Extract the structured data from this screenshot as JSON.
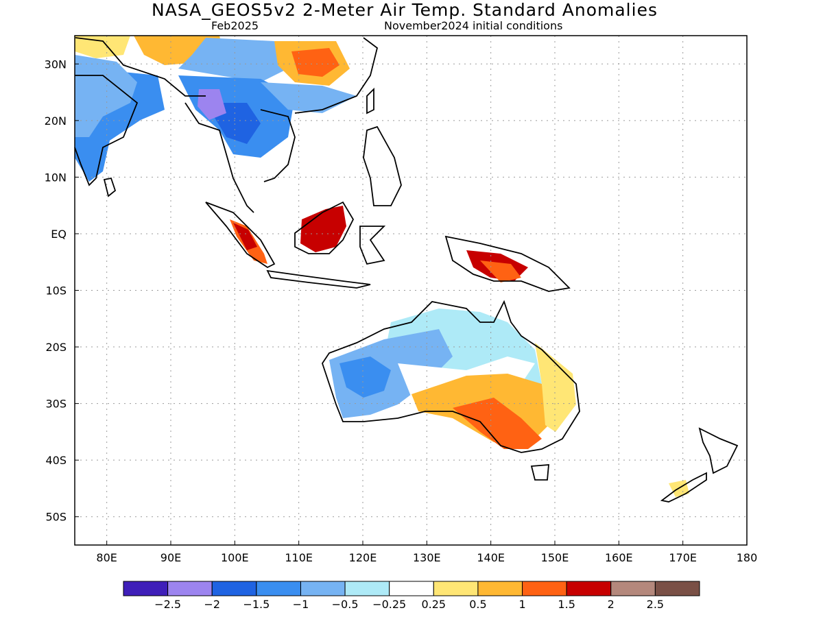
{
  "title": "NASA_GEOS5v2 2-Meter Air Temp. Standard Anomalies",
  "subtitle_left": "Feb2025",
  "subtitle_right": "November2024 initial conditions",
  "map": {
    "lon_range": [
      75,
      180
    ],
    "lat_range": [
      -55,
      35
    ],
    "lon_ticks": [
      {
        "value": 80,
        "label": "80E"
      },
      {
        "value": 90,
        "label": "90E"
      },
      {
        "value": 100,
        "label": "100E"
      },
      {
        "value": 110,
        "label": "110E"
      },
      {
        "value": 120,
        "label": "120E"
      },
      {
        "value": 130,
        "label": "130E"
      },
      {
        "value": 140,
        "label": "140E"
      },
      {
        "value": 150,
        "label": "150E"
      },
      {
        "value": 160,
        "label": "160E"
      },
      {
        "value": 170,
        "label": "170E"
      },
      {
        "value": 180,
        "label": "180"
      }
    ],
    "lat_ticks": [
      {
        "value": 30,
        "label": "30N"
      },
      {
        "value": 20,
        "label": "20N"
      },
      {
        "value": 10,
        "label": "10N"
      },
      {
        "value": 0,
        "label": "EQ"
      },
      {
        "value": -10,
        "label": "10S"
      },
      {
        "value": -20,
        "label": "20S"
      },
      {
        "value": -30,
        "label": "30S"
      },
      {
        "value": -40,
        "label": "40S"
      },
      {
        "value": -50,
        "label": "50S"
      }
    ],
    "grid": true
  },
  "colorbar": {
    "colors": [
      "#3f1fb9",
      "#9c84ef",
      "#1f63e2",
      "#3a8ef0",
      "#76b3f3",
      "#aeeaf7",
      "#ffffff",
      "#ffe675",
      "#ffb833",
      "#ff6213",
      "#c70000",
      "#b4887c",
      "#7a5046"
    ],
    "labels": [
      "-2.5",
      "-2",
      "-1.5",
      "-1",
      "-0.5",
      "-0.25",
      "0.25",
      "0.5",
      "1",
      "1.5",
      "2",
      "2.5"
    ]
  }
}
